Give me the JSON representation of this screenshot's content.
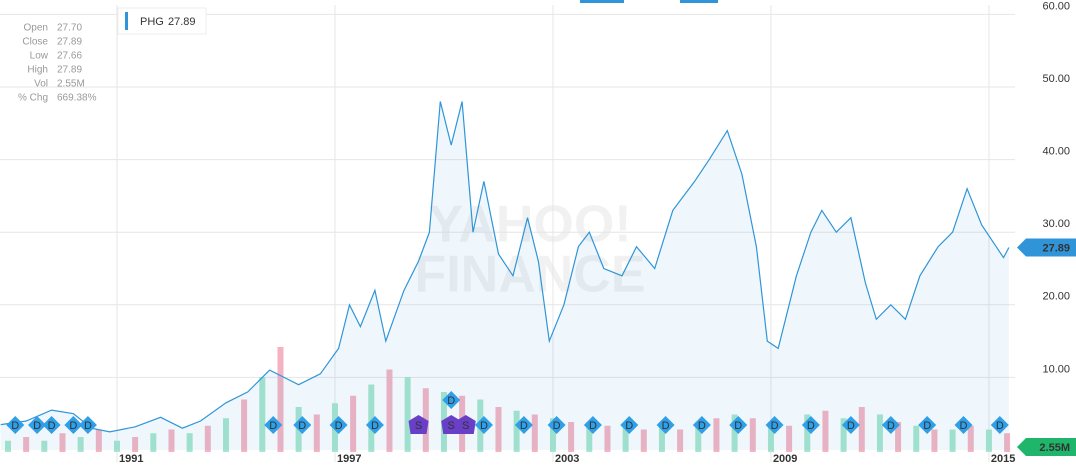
{
  "chart_data": {
    "type": "line",
    "legend": {
      "symbol": "PHG",
      "value": "27.89"
    },
    "info": [
      {
        "label": "Open",
        "value": "27.70"
      },
      {
        "label": "Close",
        "value": "27.89"
      },
      {
        "label": "Low",
        "value": "27.66"
      },
      {
        "label": "High",
        "value": "27.89"
      },
      {
        "label": "Vol",
        "value": "2.55M"
      },
      {
        "label": "% Chg",
        "value": "669.38%"
      }
    ],
    "watermark": [
      "YAHOO!",
      "FINANCE"
    ],
    "last_price": {
      "value": 27.89,
      "label": "27.89"
    },
    "last_volume": {
      "value": 2.55,
      "label": "2.55M"
    },
    "xlim": [
      1987.78,
      2015.58
    ],
    "xticks": [
      1991,
      1997,
      2003,
      2009,
      2015
    ],
    "ylim": [
      0,
      61.3
    ],
    "yticks": [
      {
        "value": 10,
        "label": "10.00"
      },
      {
        "value": 20,
        "label": "20.00"
      },
      {
        "value": 30,
        "label": "30.00"
      },
      {
        "value": 40,
        "label": "40.00"
      },
      {
        "value": 50,
        "label": "50.00"
      },
      {
        "value": 60,
        "label": "60.00"
      }
    ],
    "y2lim": [
      0,
      40
    ],
    "grid": true,
    "series": [
      {
        "name": "PHG",
        "color": "#2f95d8",
        "x": [
          1987.8,
          1988.5,
          1989.2,
          1989.8,
          1990.3,
          1990.8,
          1991.5,
          1992.2,
          1992.8,
          1993.3,
          1994,
          1994.6,
          1995.2,
          1995.6,
          1996,
          1996.6,
          1997.1,
          1997.4,
          1997.7,
          1998.1,
          1998.4,
          1998.9,
          1999.3,
          1999.6,
          1999.9,
          2000.2,
          2000.5,
          2000.8,
          2001.1,
          2001.5,
          2001.9,
          2002.3,
          2002.6,
          2002.9,
          2003.3,
          2003.7,
          2004,
          2004.4,
          2004.9,
          2005.3,
          2005.8,
          2006.3,
          2006.9,
          2007.3,
          2007.8,
          2008.2,
          2008.6,
          2008.9,
          2009.2,
          2009.7,
          2010.1,
          2010.4,
          2010.8,
          2011.2,
          2011.6,
          2011.9,
          2012.3,
          2012.7,
          2013.1,
          2013.6,
          2014,
          2014.4,
          2014.8,
          2015.2,
          2015.4,
          2015.55
        ],
        "values": [
          3.5,
          4,
          5.5,
          5,
          3,
          2.5,
          3.2,
          4.5,
          3,
          4,
          6.5,
          8,
          11,
          10,
          9,
          10.5,
          14,
          20,
          17,
          22,
          15,
          22,
          26,
          30,
          48,
          42,
          48,
          30,
          37,
          27,
          24,
          32,
          26,
          15,
          20,
          28,
          30,
          25,
          24,
          28,
          25,
          33,
          37,
          40,
          44,
          38,
          28,
          15,
          14,
          24,
          30,
          33,
          30,
          32,
          23,
          18,
          20,
          18,
          24,
          28,
          30,
          36,
          31,
          28,
          26.5,
          27.89
        ]
      },
      {
        "name": "Volume",
        "axis": "y2",
        "colors": [
          "#a8e6cc",
          "#f5b3c2"
        ],
        "x": [
          1988,
          1988.5,
          1989,
          1989.5,
          1990,
          1990.5,
          1991,
          1991.5,
          1992,
          1992.5,
          1993,
          1993.5,
          1994,
          1994.5,
          1995,
          1995.5,
          1996,
          1996.5,
          1997,
          1997.5,
          1998,
          1998.5,
          1999,
          1999.5,
          2000,
          2000.5,
          2001,
          2001.5,
          2002,
          2002.5,
          2003,
          2003.5,
          2004,
          2004.5,
          2005,
          2005.5,
          2006,
          2006.5,
          2007,
          2007.5,
          2008,
          2008.5,
          2009,
          2009.5,
          2010,
          2010.5,
          2011,
          2011.5,
          2012,
          2012.5,
          2013,
          2013.5,
          2014,
          2014.5,
          2015,
          2015.5
        ],
        "values": [
          3,
          4,
          3,
          5,
          4,
          6,
          3,
          4,
          5,
          6,
          5,
          7,
          9,
          14,
          20,
          28,
          12,
          10,
          13,
          15,
          18,
          22,
          20,
          17,
          16,
          15,
          14,
          12,
          11,
          10,
          9,
          8,
          8,
          7,
          7,
          6,
          7,
          6,
          8,
          9,
          10,
          9,
          8,
          7,
          10,
          11,
          9,
          12,
          10,
          8,
          7,
          6,
          6,
          7,
          6,
          5
        ]
      }
    ],
    "events": [
      {
        "x": 1988.2,
        "label": "D"
      },
      {
        "x": 1988.8,
        "label": "D"
      },
      {
        "x": 1989.2,
        "label": "D"
      },
      {
        "x": 1989.8,
        "label": "D"
      },
      {
        "x": 1990.2,
        "label": "D"
      },
      {
        "x": 1995.3,
        "label": "D"
      },
      {
        "x": 1996.1,
        "label": "D"
      },
      {
        "x": 1997.1,
        "label": "D"
      },
      {
        "x": 1998.1,
        "label": "D"
      },
      {
        "x": 1999.3,
        "label": "S"
      },
      {
        "x": 2000.2,
        "label": "S"
      },
      {
        "x": 2000.2,
        "label": "D"
      },
      {
        "x": 2000.6,
        "label": "S"
      },
      {
        "x": 2001.1,
        "label": "D"
      },
      {
        "x": 2002.2,
        "label": "D"
      },
      {
        "x": 2003.1,
        "label": "D"
      },
      {
        "x": 2004.1,
        "label": "D"
      },
      {
        "x": 2005.1,
        "label": "D"
      },
      {
        "x": 2006.1,
        "label": "D"
      },
      {
        "x": 2007.1,
        "label": "D"
      },
      {
        "x": 2008.1,
        "label": "D"
      },
      {
        "x": 2009.1,
        "label": "D"
      },
      {
        "x": 2010.1,
        "label": "D"
      },
      {
        "x": 2011.2,
        "label": "D"
      },
      {
        "x": 2012.3,
        "label": "D"
      },
      {
        "x": 2013.3,
        "label": "D"
      },
      {
        "x": 2014.3,
        "label": "D"
      },
      {
        "x": 2015.3,
        "label": "D"
      }
    ]
  }
}
